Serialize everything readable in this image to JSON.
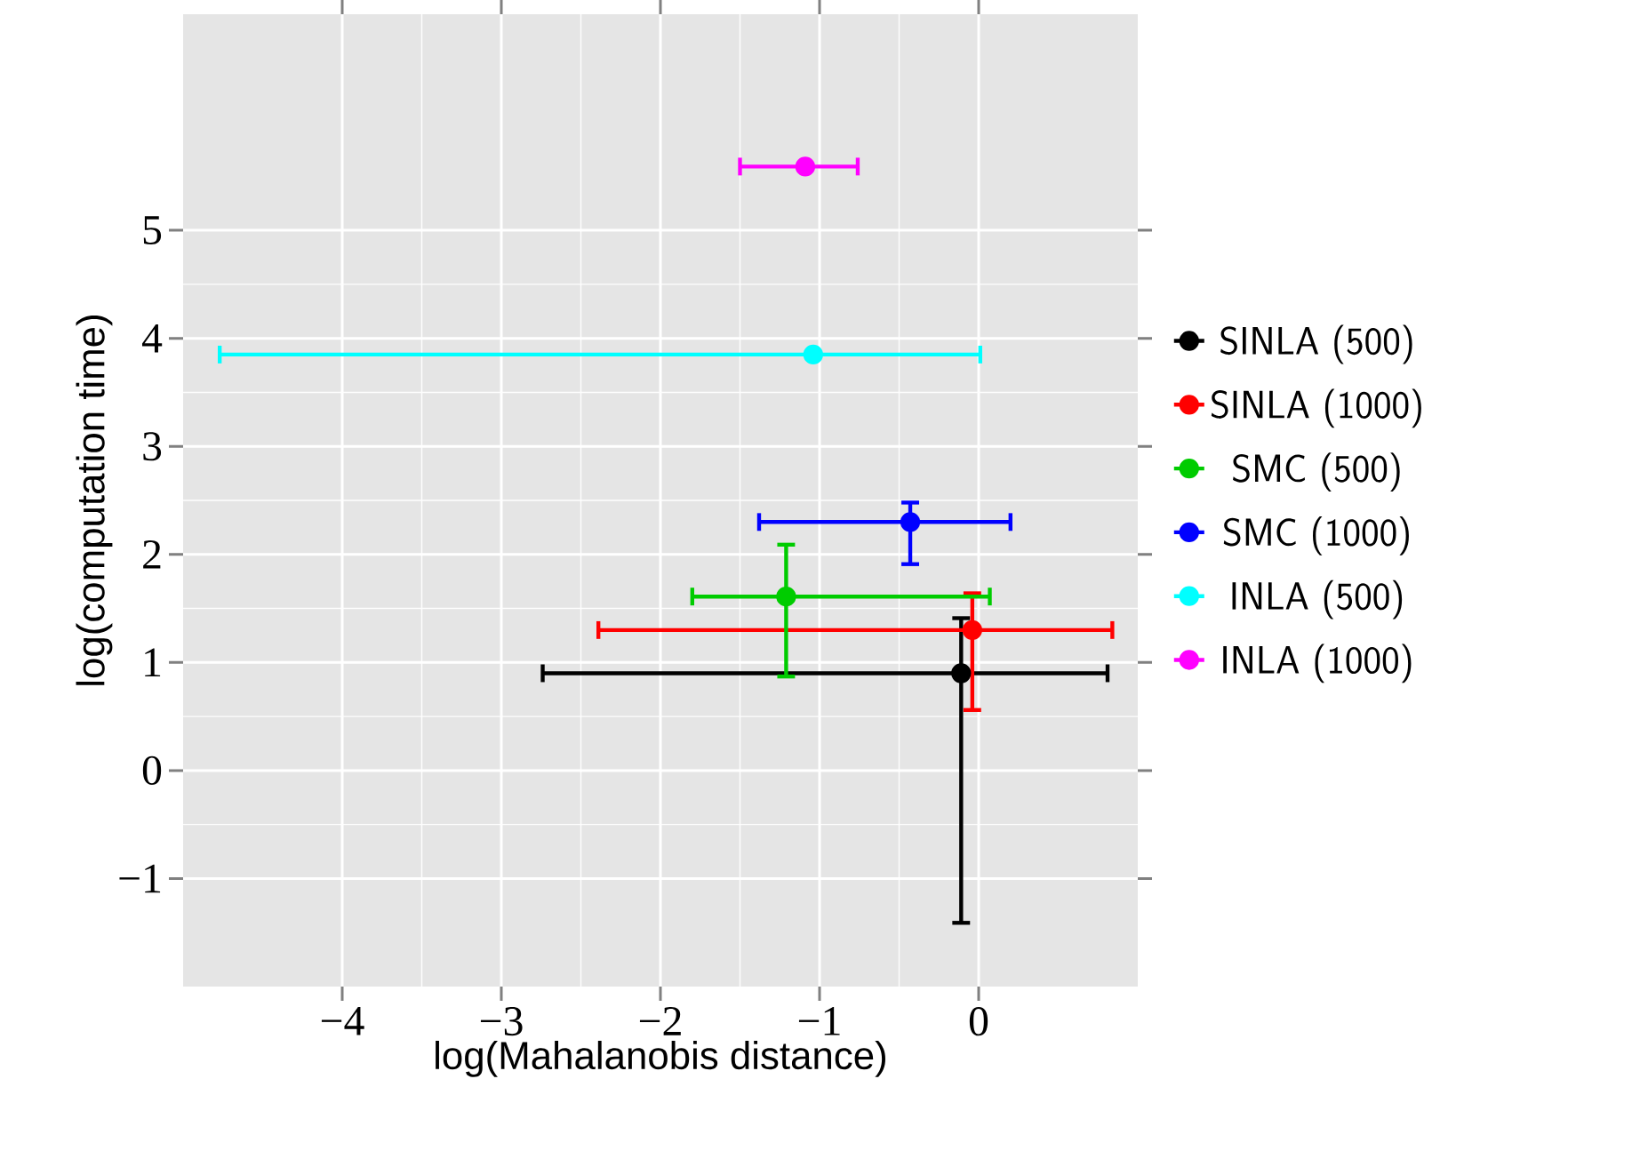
{
  "chart_data": {
    "type": "scatter",
    "xlabel": "log(Mahalanobis distance)",
    "ylabel": "log(computation time)",
    "xlim": [
      -5,
      1
    ],
    "ylim": [
      -2,
      7
    ],
    "xticks": [
      {
        "value": -4,
        "label": "−4"
      },
      {
        "value": -3,
        "label": "−3"
      },
      {
        "value": -2,
        "label": "−2"
      },
      {
        "value": -1,
        "label": "−1"
      },
      {
        "value": 0,
        "label": "0"
      }
    ],
    "yticks": [
      {
        "value": -1,
        "label": "−1"
      },
      {
        "value": 0,
        "label": "0"
      },
      {
        "value": 1,
        "label": "1"
      },
      {
        "value": 2,
        "label": "2"
      },
      {
        "value": 3,
        "label": "3"
      },
      {
        "value": 4,
        "label": "4"
      },
      {
        "value": 5,
        "label": "5"
      }
    ],
    "grid": true,
    "legend": "right",
    "marker": "circle",
    "series": [
      {
        "name": "SINLA (500)",
        "color": "#000000",
        "x": [
          -0.11
        ],
        "values": [
          0.9
        ],
        "xerrors": [
          [
            -2.74,
            0.81
          ]
        ],
        "errors": [
          [
            -1.41,
            1.41
          ]
        ]
      },
      {
        "name": "SINLA (1000)",
        "color": "#ff0000",
        "x": [
          -0.04
        ],
        "values": [
          1.3
        ],
        "xerrors": [
          [
            -2.39,
            0.84
          ]
        ],
        "errors": [
          [
            0.56,
            1.64
          ]
        ]
      },
      {
        "name": "SMC (500)",
        "color": "#00cc00",
        "x": [
          -1.21
        ],
        "values": [
          1.61
        ],
        "xerrors": [
          [
            -1.8,
            0.07
          ]
        ],
        "errors": [
          [
            0.87,
            2.09
          ]
        ]
      },
      {
        "name": "SMC (1000)",
        "color": "#0000ff",
        "x": [
          -0.43
        ],
        "values": [
          2.3
        ],
        "xerrors": [
          [
            -1.38,
            0.2
          ]
        ],
        "errors": [
          [
            1.91,
            2.48
          ]
        ]
      },
      {
        "name": "INLA (500)",
        "color": "#00ffff",
        "x": [
          -1.04
        ],
        "values": [
          3.85
        ],
        "xerrors": [
          [
            -4.77,
            0.01
          ]
        ],
        "errors": [
          null
        ]
      },
      {
        "name": "INLA (1000)",
        "color": "#ff00ff",
        "x": [
          -1.09
        ],
        "values": [
          5.59
        ],
        "xerrors": [
          [
            -1.5,
            -0.76
          ]
        ],
        "errors": [
          null
        ]
      }
    ]
  }
}
